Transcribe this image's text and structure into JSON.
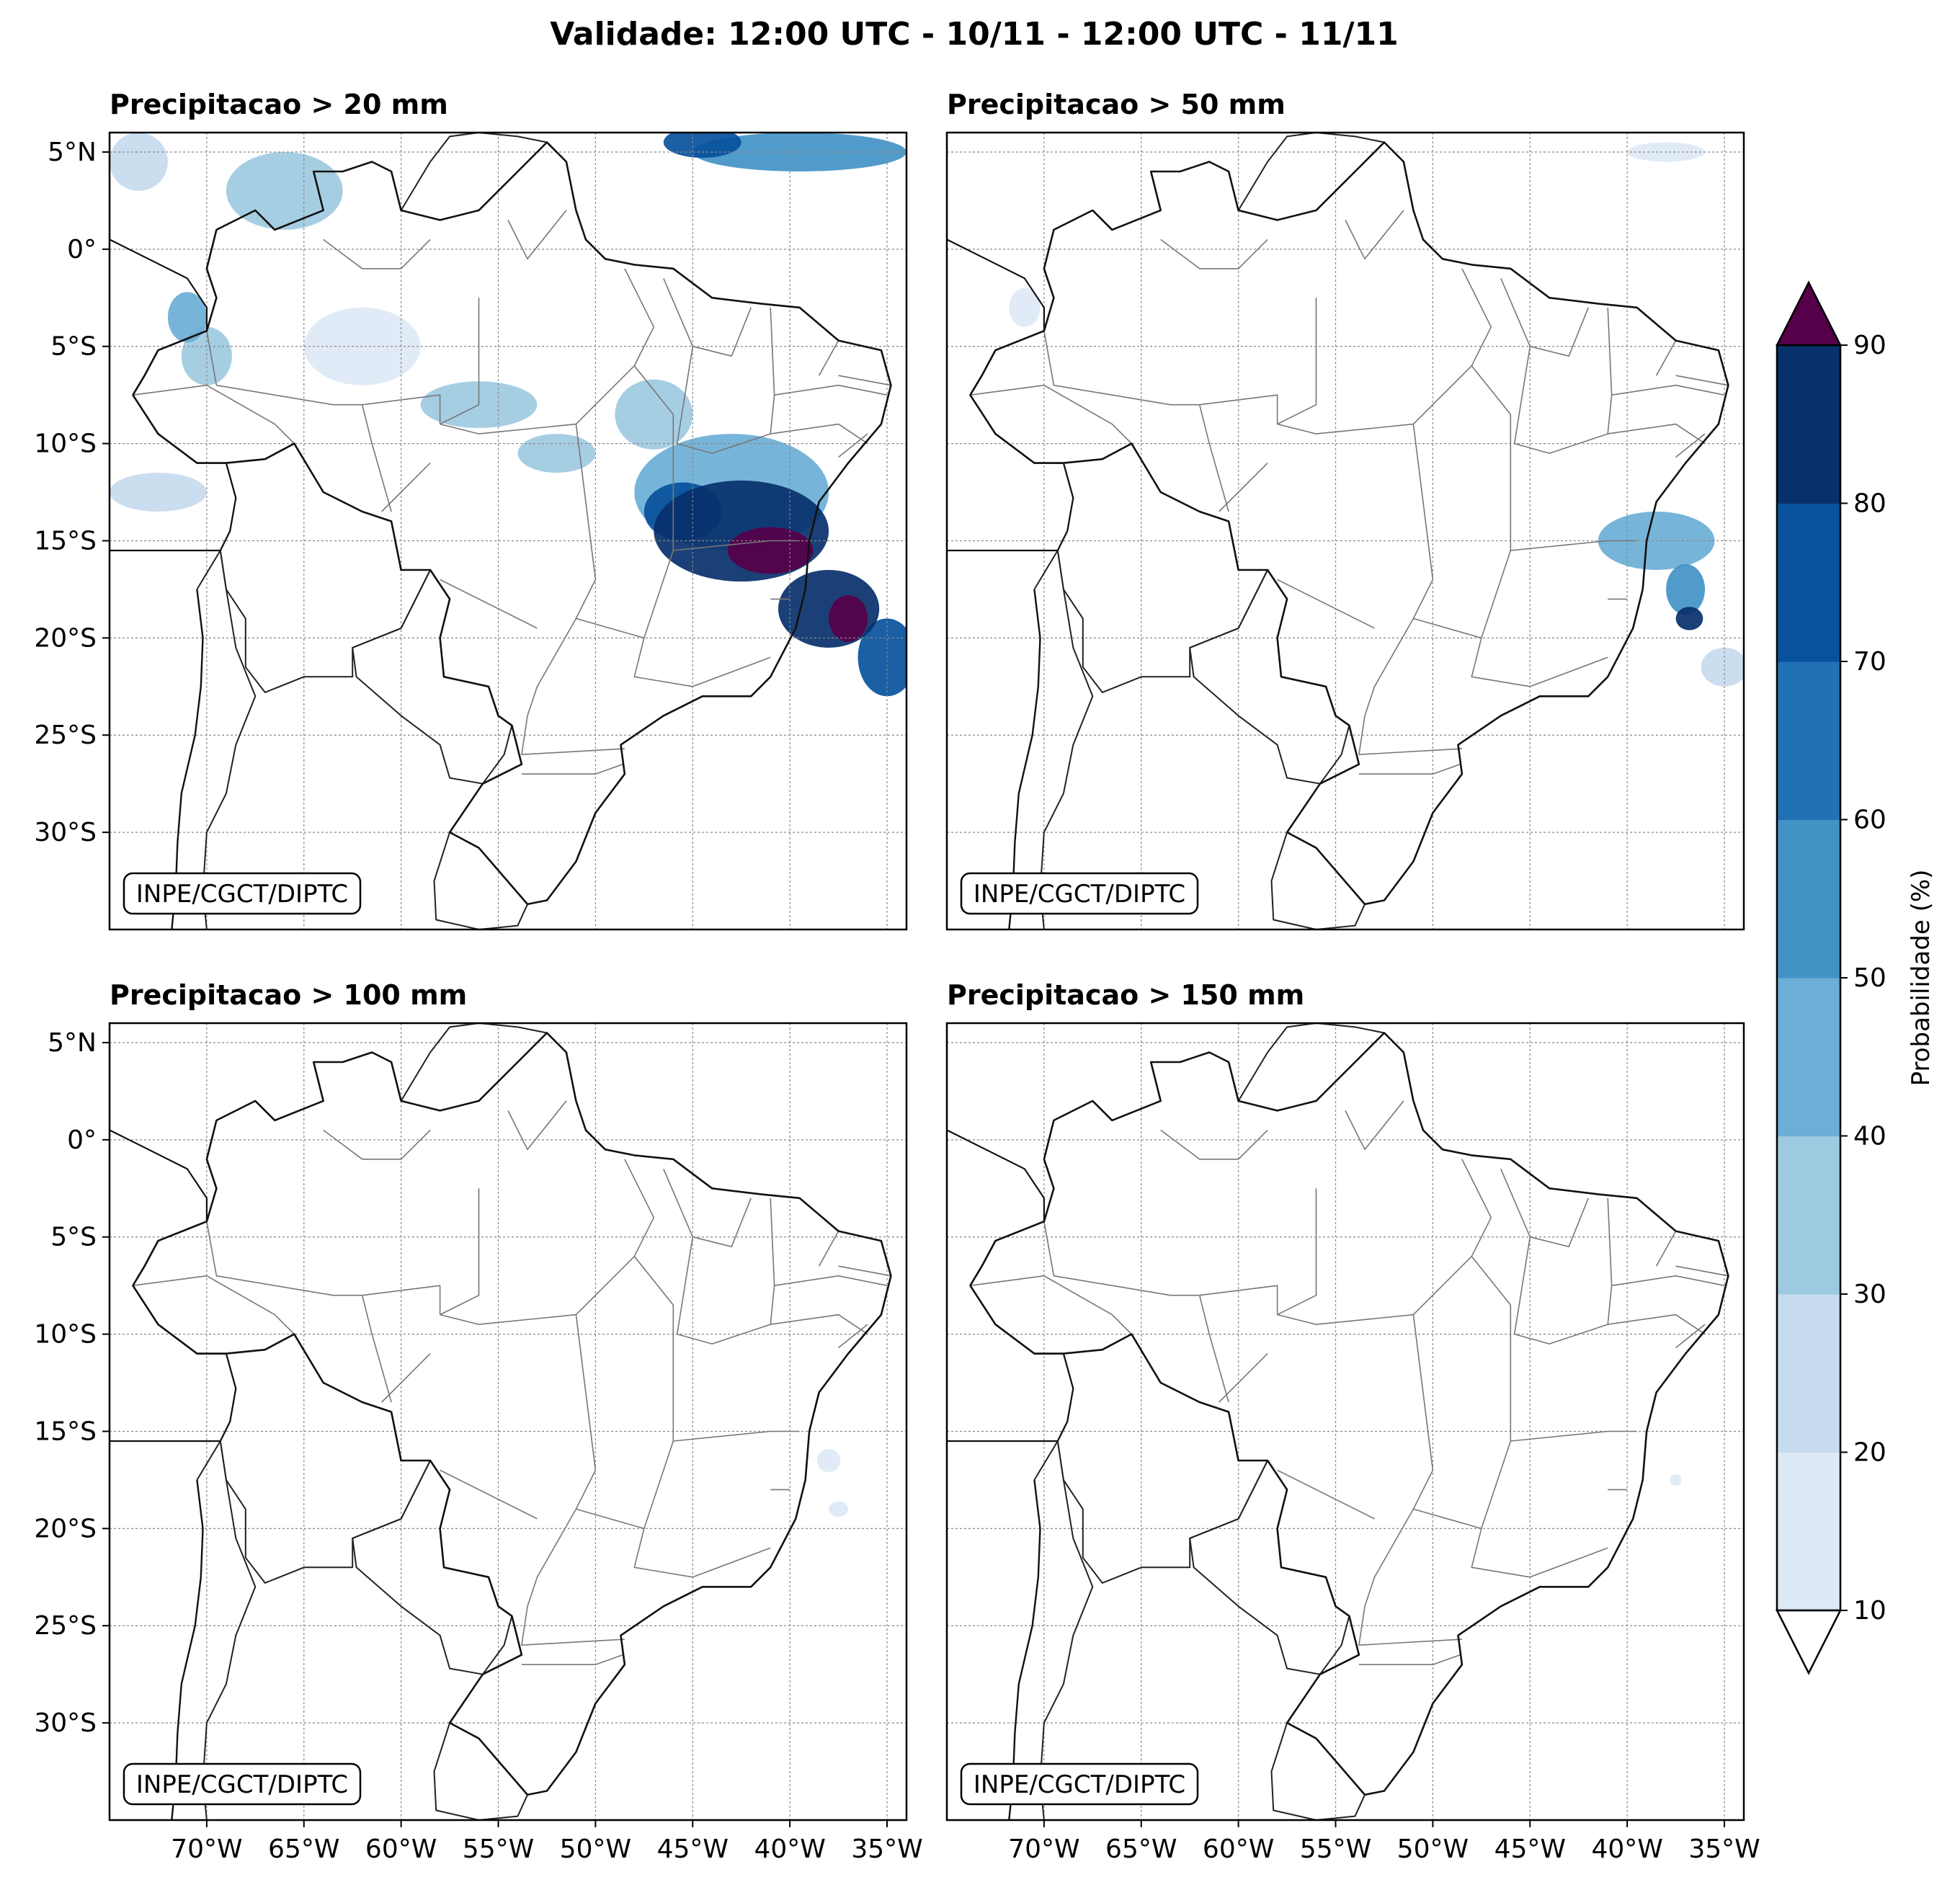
{
  "figure": {
    "title": "Validade: 12:00 UTC - 10/11 - 12:00 UTC - 11/11"
  },
  "map_extent": {
    "lon": [
      -75,
      -34
    ],
    "lat": [
      -35,
      6
    ]
  },
  "grid": {
    "lat_ticks": [
      {
        "value": 5,
        "label": "5°N"
      },
      {
        "value": 0,
        "label": "0°"
      },
      {
        "value": -5,
        "label": "5°S"
      },
      {
        "value": -10,
        "label": "10°S"
      },
      {
        "value": -15,
        "label": "15°S"
      },
      {
        "value": -20,
        "label": "20°S"
      },
      {
        "value": -25,
        "label": "25°S"
      },
      {
        "value": -30,
        "label": "30°S"
      }
    ],
    "lon_ticks": [
      {
        "value": -70,
        "label": "70°W"
      },
      {
        "value": -65,
        "label": "65°W"
      },
      {
        "value": -60,
        "label": "60°W"
      },
      {
        "value": -55,
        "label": "55°W"
      },
      {
        "value": -50,
        "label": "50°W"
      },
      {
        "value": -45,
        "label": "45°W"
      },
      {
        "value": -40,
        "label": "40°W"
      },
      {
        "value": -35,
        "label": "35°W"
      }
    ]
  },
  "panels": [
    {
      "title": "Precipitacao > 20 mm",
      "credit": "INPE/CGCT/DIPTC"
    },
    {
      "title": "Precipitacao > 50 mm",
      "credit": "INPE/CGCT/DIPTC"
    },
    {
      "title": "Precipitacao > 100 mm",
      "credit": "INPE/CGCT/DIPTC"
    },
    {
      "title": "Precipitacao > 150 mm",
      "credit": "INPE/CGCT/DIPTC"
    }
  ],
  "colorbar": {
    "label": "Probabilidade (%)",
    "ticks": [
      "10",
      "20",
      "30",
      "40",
      "50",
      "60",
      "70",
      "80",
      "90"
    ],
    "colors": [
      "#dee9f6",
      "#c7dbef",
      "#9ecae1",
      "#6baed6",
      "#4292c6",
      "#2171b5",
      "#08519c",
      "#08306b"
    ],
    "over_color": "#560049",
    "under_color": "#ffffff"
  },
  "chart_data": {
    "type": "heatmap",
    "unit": "Probabilidade (%)",
    "note_levels": [
      10,
      20,
      30,
      40,
      50,
      60,
      70,
      80,
      90
    ],
    "panels": [
      {
        "threshold_mm": 20,
        "areas": [
          {
            "lon": -42.5,
            "lat": -14.5,
            "rlon": 4.5,
            "rlat": 2.6,
            "prob": 80
          },
          {
            "lon": -41.0,
            "lat": -15.5,
            "rlon": 2.2,
            "rlat": 1.2,
            "prob": 95
          },
          {
            "lon": -38.0,
            "lat": -18.5,
            "rlon": 2.6,
            "rlat": 2.0,
            "prob": 85
          },
          {
            "lon": -37.0,
            "lat": -19.0,
            "rlon": 1.0,
            "rlat": 1.2,
            "prob": 95
          },
          {
            "lon": -35.0,
            "lat": -21.0,
            "rlon": 1.5,
            "rlat": 2.0,
            "prob": 70
          },
          {
            "lon": -45.5,
            "lat": -13.5,
            "rlon": 2.0,
            "rlat": 1.5,
            "prob": 70
          },
          {
            "lon": -43.0,
            "lat": -12.5,
            "rlon": 5.0,
            "rlat": 3.0,
            "prob": 40
          },
          {
            "lon": -39.5,
            "lat": 5.0,
            "rlon": 5.5,
            "rlat": 1.0,
            "prob": 55
          },
          {
            "lon": -44.5,
            "lat": 5.5,
            "rlon": 2.0,
            "rlat": 0.8,
            "prob": 75
          },
          {
            "lon": -66.0,
            "lat": 3.0,
            "rlon": 3.0,
            "rlat": 2.0,
            "prob": 30
          },
          {
            "lon": -71.0,
            "lat": -3.5,
            "rlon": 1.0,
            "rlat": 1.3,
            "prob": 45
          },
          {
            "lon": -70.0,
            "lat": -5.5,
            "rlon": 1.3,
            "rlat": 1.5,
            "prob": 35
          },
          {
            "lon": -56.0,
            "lat": -8.0,
            "rlon": 3.0,
            "rlat": 1.2,
            "prob": 30
          },
          {
            "lon": -52.0,
            "lat": -10.5,
            "rlon": 2.0,
            "rlat": 1.0,
            "prob": 35
          },
          {
            "lon": -47.0,
            "lat": -8.5,
            "rlon": 2.0,
            "rlat": 1.8,
            "prob": 30
          },
          {
            "lon": -72.5,
            "lat": -12.5,
            "rlon": 2.5,
            "rlat": 1.0,
            "prob": 20
          },
          {
            "lon": -62.0,
            "lat": -5.0,
            "rlon": 3.0,
            "rlat": 2.0,
            "prob": 15
          },
          {
            "lon": -73.5,
            "lat": 4.5,
            "rlon": 1.5,
            "rlat": 1.5,
            "prob": 20
          }
        ]
      },
      {
        "threshold_mm": 50,
        "areas": [
          {
            "lon": -38.5,
            "lat": -15.0,
            "rlon": 3.0,
            "rlat": 1.5,
            "prob": 40
          },
          {
            "lon": -37.0,
            "lat": -17.5,
            "rlon": 1.0,
            "rlat": 1.3,
            "prob": 50
          },
          {
            "lon": -36.8,
            "lat": -19.0,
            "rlon": 0.7,
            "rlat": 0.6,
            "prob": 80
          },
          {
            "lon": -35.0,
            "lat": -21.5,
            "rlon": 1.2,
            "rlat": 1.0,
            "prob": 25
          },
          {
            "lon": -38.0,
            "lat": 5.0,
            "rlon": 2.0,
            "rlat": 0.5,
            "prob": 15
          },
          {
            "lon": -71.0,
            "lat": -3.0,
            "rlon": 0.8,
            "rlat": 1.0,
            "prob": 15
          }
        ]
      },
      {
        "threshold_mm": 100,
        "areas": [
          {
            "lon": -38.0,
            "lat": -16.5,
            "rlon": 0.6,
            "rlat": 0.6,
            "prob": 15
          },
          {
            "lon": -37.5,
            "lat": -19.0,
            "rlon": 0.5,
            "rlat": 0.4,
            "prob": 15
          }
        ]
      },
      {
        "threshold_mm": 150,
        "areas": [
          {
            "lon": -37.5,
            "lat": -17.5,
            "rlon": 0.3,
            "rlat": 0.3,
            "prob": 12
          }
        ]
      }
    ]
  },
  "borders": {
    "coast": [
      [
        -75,
        6.0
      ],
      [
        -75,
        3.0
      ],
      [
        -75,
        0.5
      ],
      [
        -73.0,
        -0.5
      ],
      [
        -71.0,
        -1.5
      ],
      [
        -70.0,
        -3.0
      ],
      [
        -70.0,
        -4.2
      ],
      [
        -72.5,
        -5.2
      ],
      [
        -73.2,
        -6.5
      ],
      [
        -73.8,
        -7.5
      ],
      [
        -72.5,
        -9.5
      ],
      [
        -70.5,
        -11.0
      ],
      [
        -69.0,
        -11.0
      ],
      [
        -68.5,
        -12.8
      ],
      [
        -68.8,
        -14.5
      ],
      [
        -69.3,
        -15.5
      ],
      [
        -75,
        -15.5
      ]
    ],
    "brazil": [
      [
        -73.8,
        -7.5
      ],
      [
        -72.5,
        -9.5
      ],
      [
        -70.5,
        -11.0
      ],
      [
        -69.0,
        -11.0
      ],
      [
        -67.0,
        -10.8
      ],
      [
        -65.5,
        -10.0
      ],
      [
        -64.0,
        -12.5
      ],
      [
        -62.0,
        -13.5
      ],
      [
        -60.5,
        -14.0
      ],
      [
        -60.0,
        -16.5
      ],
      [
        -58.5,
        -16.5
      ],
      [
        -57.5,
        -18.0
      ],
      [
        -58.0,
        -20.0
      ],
      [
        -57.8,
        -22.0
      ],
      [
        -55.5,
        -22.5
      ],
      [
        -55.0,
        -24.0
      ],
      [
        -54.3,
        -24.5
      ],
      [
        -53.8,
        -26.5
      ],
      [
        -55.8,
        -27.5
      ],
      [
        -57.5,
        -30.0
      ],
      [
        -56.0,
        -30.8
      ],
      [
        -53.5,
        -33.7
      ],
      [
        -52.5,
        -33.5
      ],
      [
        -51.0,
        -31.5
      ],
      [
        -50.0,
        -29.0
      ],
      [
        -48.5,
        -27.0
      ],
      [
        -48.7,
        -25.5
      ],
      [
        -46.5,
        -24.0
      ],
      [
        -44.5,
        -23.0
      ],
      [
        -42.0,
        -23.0
      ],
      [
        -41.0,
        -22.0
      ],
      [
        -39.7,
        -19.5
      ],
      [
        -39.2,
        -17.5
      ],
      [
        -39.0,
        -15.0
      ],
      [
        -38.5,
        -13.0
      ],
      [
        -37.0,
        -11.0
      ],
      [
        -35.3,
        -9.0
      ],
      [
        -34.8,
        -7.0
      ],
      [
        -35.3,
        -5.2
      ],
      [
        -37.5,
        -4.7
      ],
      [
        -39.5,
        -3.0
      ],
      [
        -41.5,
        -2.8
      ],
      [
        -44.0,
        -2.5
      ],
      [
        -46.0,
        -1.0
      ],
      [
        -48.0,
        -0.8
      ],
      [
        -49.5,
        -0.5
      ],
      [
        -50.5,
        0.5
      ],
      [
        -51.0,
        2.0
      ],
      [
        -51.5,
        4.5
      ],
      [
        -52.5,
        5.5
      ],
      [
        -54.0,
        4.0
      ],
      [
        -56.0,
        2.0
      ],
      [
        -58.0,
        1.5
      ],
      [
        -60.0,
        2.0
      ],
      [
        -60.5,
        4.0
      ],
      [
        -61.5,
        4.5
      ],
      [
        -63.0,
        4.0
      ],
      [
        -64.5,
        4.0
      ],
      [
        -64.0,
        2.0
      ],
      [
        -66.5,
        1.0
      ],
      [
        -67.5,
        2.0
      ],
      [
        -69.5,
        1.0
      ],
      [
        -70.0,
        -1.0
      ],
      [
        -69.5,
        -2.5
      ],
      [
        -70.0,
        -4.2
      ],
      [
        -72.5,
        -5.2
      ],
      [
        -73.2,
        -6.5
      ],
      [
        -73.8,
        -7.5
      ]
    ],
    "uruguay": [
      [
        -57.5,
        -30.0
      ],
      [
        -58.3,
        -32.5
      ],
      [
        -58.2,
        -34.5
      ],
      [
        -56.0,
        -35.0
      ],
      [
        -54.0,
        -34.8
      ],
      [
        -53.5,
        -33.7
      ],
      [
        -56.0,
        -30.8
      ],
      [
        -57.5,
        -30.0
      ]
    ],
    "paraguay": [
      [
        -58.5,
        -16.5
      ],
      [
        -60.0,
        -19.5
      ],
      [
        -62.5,
        -20.5
      ],
      [
        -62.3,
        -22.0
      ],
      [
        -60.0,
        -24.0
      ],
      [
        -58.0,
        -25.5
      ],
      [
        -57.5,
        -27.2
      ],
      [
        -55.8,
        -27.5
      ],
      [
        -54.7,
        -26.0
      ],
      [
        -54.3,
        -24.5
      ],
      [
        -55.0,
        -24.0
      ],
      [
        -55.5,
        -22.5
      ],
      [
        -57.8,
        -22.0
      ],
      [
        -58.0,
        -20.0
      ],
      [
        -57.5,
        -18.0
      ],
      [
        -58.5,
        -16.5
      ]
    ],
    "bolivia": [
      [
        -69.0,
        -11.0
      ],
      [
        -68.5,
        -12.8
      ],
      [
        -68.8,
        -14.5
      ],
      [
        -69.3,
        -15.5
      ],
      [
        -69.0,
        -17.5
      ],
      [
        -68.0,
        -19.0
      ],
      [
        -68.0,
        -21.5
      ],
      [
        -67.0,
        -22.8
      ],
      [
        -65.0,
        -22.0
      ],
      [
        -62.5,
        -22.0
      ],
      [
        -62.5,
        -20.5
      ],
      [
        -60.0,
        -19.5
      ],
      [
        -58.5,
        -16.5
      ],
      [
        -60.0,
        -16.5
      ],
      [
        -60.5,
        -14.0
      ],
      [
        -62.0,
        -13.5
      ],
      [
        -64.0,
        -12.5
      ],
      [
        -65.5,
        -10.0
      ],
      [
        -67.0,
        -10.8
      ],
      [
        -69.0,
        -11.0
      ]
    ],
    "chile_argentina": [
      [
        -70.5,
        -17.5
      ],
      [
        -70.2,
        -20.0
      ],
      [
        -70.3,
        -22.5
      ],
      [
        -70.6,
        -25.0
      ],
      [
        -71.3,
        -28.0
      ],
      [
        -71.5,
        -30.5
      ],
      [
        -71.6,
        -33.0
      ],
      [
        -71.8,
        -35.0
      ]
    ],
    "andes": [
      [
        -69.3,
        -15.5
      ],
      [
        -69.0,
        -17.5
      ],
      [
        -68.5,
        -20.5
      ],
      [
        -67.5,
        -23.0
      ],
      [
        -68.5,
        -25.5
      ],
      [
        -69.0,
        -28.0
      ],
      [
        -70.0,
        -30.0
      ],
      [
        -70.2,
        -33.0
      ],
      [
        -70.0,
        -35.0
      ]
    ],
    "guianas": [
      [
        -60.0,
        2.0
      ],
      [
        -58.5,
        4.5
      ],
      [
        -57.5,
        5.8
      ],
      [
        -56.0,
        6.0
      ],
      [
        -54.0,
        5.8
      ],
      [
        -52.5,
        5.5
      ],
      [
        -51.5,
        4.5
      ]
    ],
    "states": [
      [
        [
          -73.8,
          -7.5
        ],
        [
          -70.0,
          -7.0
        ],
        [
          -66.5,
          -9.0
        ],
        [
          -65.5,
          -10.0
        ]
      ],
      [
        [
          -70.0,
          -4.2
        ],
        [
          -69.5,
          -7.0
        ],
        [
          -63.5,
          -8.0
        ],
        [
          -62.0,
          -8.0
        ],
        [
          -58.0,
          -7.5
        ],
        [
          -58.0,
          -9.0
        ]
      ],
      [
        [
          -62.0,
          -8.0
        ],
        [
          -61.5,
          -10.0
        ],
        [
          -60.5,
          -13.5
        ]
      ],
      [
        [
          -58.0,
          -9.0
        ],
        [
          -56.0,
          -9.5
        ],
        [
          -51.0,
          -9.0
        ],
        [
          -50.5,
          -13.0
        ]
      ],
      [
        [
          -56.0,
          -2.5
        ],
        [
          -56.0,
          -8.0
        ],
        [
          -58.0,
          -9.0
        ]
      ],
      [
        [
          -51.0,
          -9.0
        ],
        [
          -48.0,
          -6.0
        ],
        [
          -47.0,
          -4.0
        ],
        [
          -48.5,
          -1.0
        ]
      ],
      [
        [
          -48.0,
          -6.0
        ],
        [
          -46.0,
          -8.5
        ],
        [
          -46.0,
          -13.0
        ]
      ],
      [
        [
          -46.5,
          -1.5
        ],
        [
          -45.0,
          -5.0
        ],
        [
          -43.0,
          -5.5
        ],
        [
          -42.0,
          -3.0
        ]
      ],
      [
        [
          -45.0,
          -5.0
        ],
        [
          -45.8,
          -10.0
        ],
        [
          -44.0,
          -10.5
        ],
        [
          -41.0,
          -9.5
        ],
        [
          -40.8,
          -7.5
        ],
        [
          -41.0,
          -3.0
        ]
      ],
      [
        [
          -40.8,
          -7.5
        ],
        [
          -37.5,
          -7.0
        ],
        [
          -35.0,
          -7.5
        ]
      ],
      [
        [
          -41.0,
          -9.5
        ],
        [
          -37.5,
          -9.0
        ],
        [
          -36.0,
          -10.0
        ]
      ],
      [
        [
          -46.0,
          -13.0
        ],
        [
          -46.0,
          -15.5
        ],
        [
          -41.0,
          -15.0
        ],
        [
          -39.5,
          -15.0
        ]
      ],
      [
        [
          -50.5,
          -13.0
        ],
        [
          -50.0,
          -17.0
        ],
        [
          -51.0,
          -19.0
        ],
        [
          -47.5,
          -20.0
        ],
        [
          -46.0,
          -15.5
        ]
      ],
      [
        [
          -51.0,
          -19.0
        ],
        [
          -53.0,
          -22.5
        ],
        [
          -53.5,
          -24.0
        ]
      ],
      [
        [
          -47.5,
          -20.0
        ],
        [
          -48.0,
          -22.0
        ],
        [
          -45.0,
          -22.5
        ],
        [
          -41.0,
          -21.0
        ]
      ],
      [
        [
          -41.0,
          -18.0
        ],
        [
          -40.0,
          -18.0
        ]
      ],
      [
        [
          -53.5,
          -24.0
        ],
        [
          -53.8,
          -26.0
        ],
        [
          -48.5,
          -25.7
        ]
      ],
      [
        [
          -53.8,
          -27.0
        ],
        [
          -50.0,
          -27.0
        ],
        [
          -48.6,
          -26.5
        ]
      ],
      [
        [
          -53.0,
          -19.5
        ],
        [
          -58.0,
          -17.0
        ]
      ],
      [
        [
          -51.5,
          2.0
        ],
        [
          -53.5,
          -0.5
        ],
        [
          -54.5,
          1.5
        ]
      ],
      [
        [
          -58.5,
          0.5
        ],
        [
          -60.0,
          -1.0
        ],
        [
          -62.0,
          -1.0
        ],
        [
          -64.0,
          0.5
        ]
      ],
      [
        [
          -58.5,
          -11.0
        ],
        [
          -61.0,
          -13.5
        ]
      ],
      [
        [
          -36.0,
          -9.5
        ],
        [
          -37.5,
          -10.7
        ]
      ],
      [
        [
          -34.8,
          -7.0
        ],
        [
          -37.5,
          -6.5
        ]
      ],
      [
        [
          -37.5,
          -4.7
        ],
        [
          -38.5,
          -6.5
        ]
      ]
    ],
    "intl_north": [
      [
        -75,
        -15.5
      ],
      [
        -69.3,
        -15.5
      ]
    ],
    "peru_bolivia": [
      [
        -69.3,
        -15.5
      ],
      [
        -70.5,
        -17.5
      ]
    ]
  }
}
